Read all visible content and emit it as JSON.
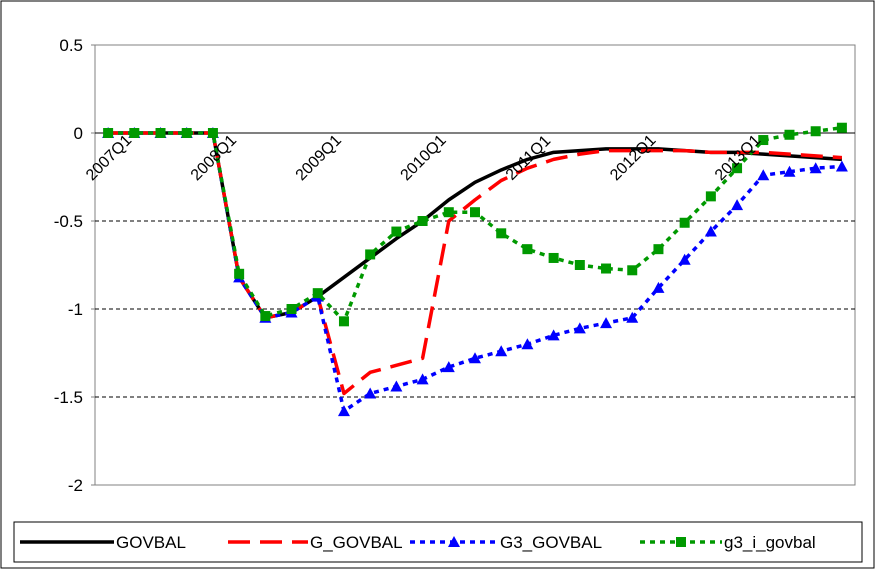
{
  "chart_data": {
    "type": "line",
    "title": "",
    "xlabel": "",
    "ylabel": "",
    "ylim": [
      -2,
      0.5
    ],
    "yticks": [
      0.5,
      0,
      -0.5,
      -1,
      -1.5,
      -2
    ],
    "ytick_labels": [
      "0.5",
      "0",
      "-0.5",
      "-1",
      "-1.5",
      "-2"
    ],
    "x_tick_labels": [
      "2007Q1",
      "2008Q1",
      "2009Q1",
      "2010Q1",
      "2011Q1",
      "2012Q1",
      "2013Q1"
    ],
    "x_tick_positions": [
      0,
      4,
      8,
      12,
      16,
      20,
      24
    ],
    "x_count": 29,
    "grid": "horizontal dashed at -0.5, -1, -1.5",
    "legend_position": "bottom",
    "series": [
      {
        "name": "GOVBAL",
        "color": "#000000",
        "style": "solid",
        "marker": "none",
        "values": [
          0,
          0,
          0,
          0,
          0,
          -0.82,
          -1.05,
          -1.02,
          -0.93,
          -0.82,
          -0.71,
          -0.6,
          -0.5,
          -0.38,
          -0.28,
          -0.21,
          -0.15,
          -0.11,
          -0.1,
          -0.09,
          -0.09,
          -0.09,
          -0.1,
          -0.11,
          -0.11,
          -0.12,
          -0.13,
          -0.14,
          -0.15
        ]
      },
      {
        "name": "G_GOVBAL",
        "color": "#ff0000",
        "style": "long-dash",
        "marker": "none",
        "values": [
          0,
          0,
          0,
          0,
          0,
          -0.82,
          -1.05,
          -1.02,
          -0.93,
          -1.48,
          -1.36,
          -1.32,
          -1.28,
          -0.5,
          -0.38,
          -0.27,
          -0.2,
          -0.15,
          -0.12,
          -0.1,
          -0.1,
          -0.1,
          -0.1,
          -0.11,
          -0.11,
          -0.11,
          -0.12,
          -0.13,
          -0.14
        ]
      },
      {
        "name": "G3_GOVBAL",
        "color": "#0000ff",
        "style": "dotted",
        "marker": "triangle",
        "values": [
          0,
          0,
          0,
          0,
          0,
          -0.82,
          -1.05,
          -1.02,
          -0.93,
          -1.58,
          -1.48,
          -1.44,
          -1.4,
          -1.33,
          -1.28,
          -1.24,
          -1.2,
          -1.15,
          -1.11,
          -1.08,
          -1.05,
          -0.88,
          -0.72,
          -0.56,
          -0.41,
          -0.24,
          -0.22,
          -0.2,
          -0.19
        ]
      },
      {
        "name": "g3_i_govbal",
        "color": "#009900",
        "style": "dotted",
        "marker": "square",
        "values": [
          0,
          0,
          0,
          0,
          0,
          -0.8,
          -1.04,
          -1.0,
          -0.91,
          -1.07,
          -0.69,
          -0.56,
          -0.5,
          -0.45,
          -0.45,
          -0.57,
          -0.66,
          -0.71,
          -0.75,
          -0.77,
          -0.78,
          -0.66,
          -0.51,
          -0.36,
          -0.2,
          -0.04,
          -0.01,
          0.01,
          0.03
        ]
      }
    ]
  }
}
